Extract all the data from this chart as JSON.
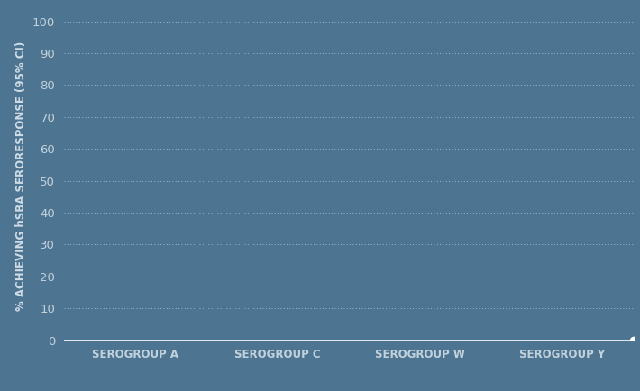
{
  "background_color": "#4d7491",
  "plot_bg_color": "#4d7491",
  "grid_color": "#FFFFFF",
  "tick_label_color": "#d0dde6",
  "axis_label_color": "#d0dde6",
  "xlabel_labels": [
    "SEROGROUP A",
    "SEROGROUP C",
    "SEROGROUP W",
    "SEROGROUP Y"
  ],
  "ylabel": "% ACHIEVING hSBA SERORESPONSE (95% CI)",
  "yticks": [
    0,
    10,
    20,
    30,
    40,
    50,
    60,
    70,
    80,
    90,
    100
  ],
  "ylim": [
    0,
    103
  ],
  "xlim": [
    -0.5,
    3.5
  ],
  "dot_x": 3.5,
  "dot_color": "#FFFFFF",
  "line_color": "#FFFFFF",
  "line_y": 0,
  "ylabel_fontsize": 8.5,
  "tick_fontsize": 9.5,
  "xlabel_fontsize": 8.5,
  "figsize": [
    7.1,
    4.34
  ],
  "dpi": 100
}
